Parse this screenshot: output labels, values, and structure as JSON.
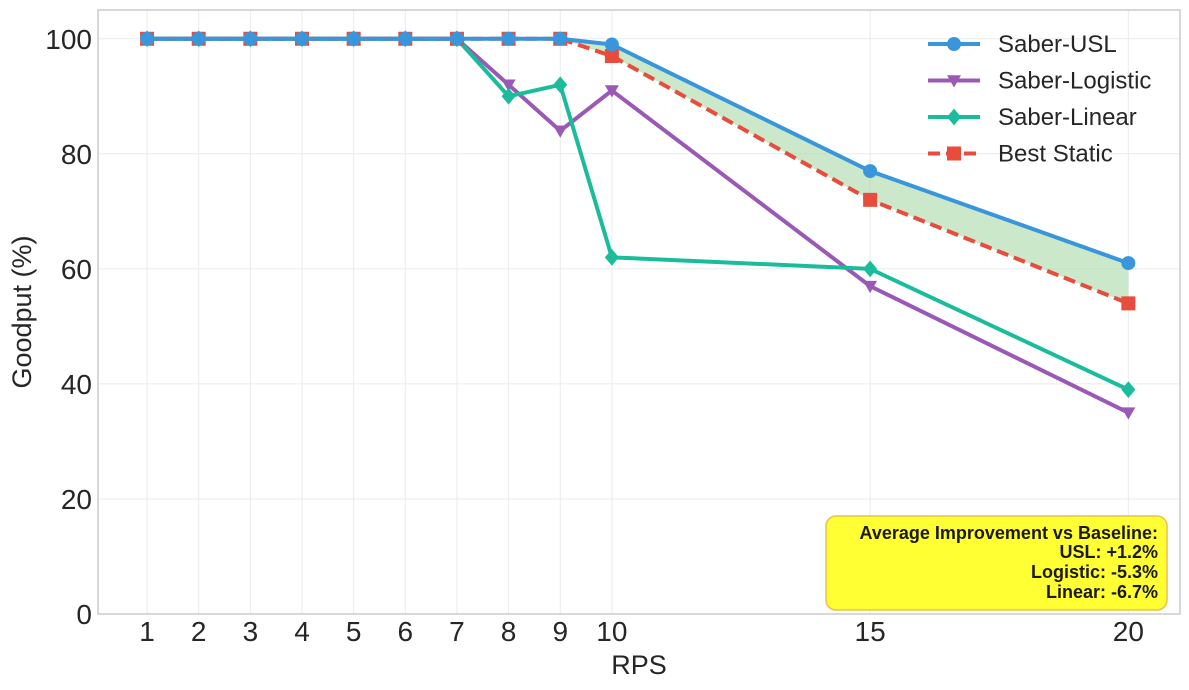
{
  "chart_data": {
    "type": "line",
    "title": "",
    "xlabel": "RPS",
    "ylabel": "Goodput (%)",
    "x": [
      1,
      2,
      3,
      4,
      5,
      6,
      7,
      8,
      9,
      10,
      15,
      20
    ],
    "x_ticks": [
      "1",
      "2",
      "3",
      "4",
      "5",
      "6",
      "7",
      "8",
      "9",
      "10",
      "15",
      "20"
    ],
    "y_ticks": [
      "0",
      "20",
      "40",
      "60",
      "80",
      "100"
    ],
    "xlim": [
      0.05,
      21
    ],
    "ylim": [
      0,
      105
    ],
    "grid": true,
    "legend_position": "top-right",
    "series": [
      {
        "name": "Saber-USL",
        "color": "#3a96db",
        "marker": "circle",
        "dash": "solid",
        "values": [
          100,
          100,
          100,
          100,
          100,
          100,
          100,
          100,
          100,
          99,
          77,
          61
        ]
      },
      {
        "name": "Saber-Logistic",
        "color": "#9b59b6",
        "marker": "triangle-down",
        "dash": "solid",
        "values": [
          100,
          100,
          100,
          100,
          100,
          100,
          100,
          92,
          84,
          91,
          57,
          35
        ]
      },
      {
        "name": "Saber-Linear",
        "color": "#1abc9c",
        "marker": "diamond",
        "dash": "solid",
        "values": [
          100,
          100,
          100,
          100,
          100,
          100,
          100,
          90,
          92,
          62,
          60,
          39
        ]
      },
      {
        "name": "Best Static",
        "color": "#e74c3c",
        "marker": "square",
        "dash": "dashed",
        "values": [
          100,
          100,
          100,
          100,
          100,
          100,
          100,
          100,
          100,
          97,
          72,
          54
        ]
      }
    ],
    "fill_between": {
      "upper": "Saber-USL",
      "lower": "Best Static",
      "color": "#a9d8a9"
    },
    "annotation": {
      "position": "bottom-right",
      "background": "#ffff33",
      "border": "#e8c24a",
      "lines": [
        "Average Improvement vs Baseline:",
        "USL: +1.2%",
        "Logistic: -5.3%",
        "Linear: -6.7%"
      ]
    }
  }
}
